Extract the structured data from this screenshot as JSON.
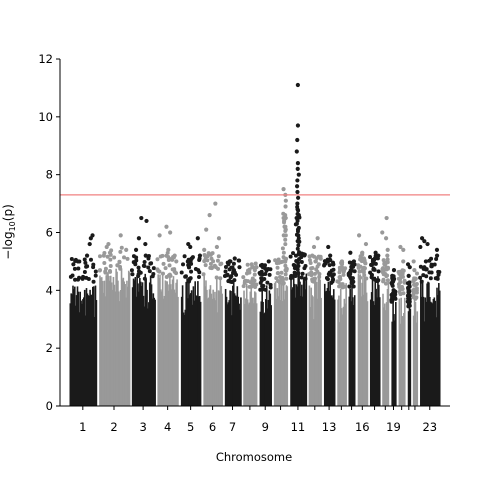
{
  "chart_data": {
    "type": "scatter",
    "title": "",
    "xlabel": "Chromosome",
    "ylabel": "−log₁₀(p)",
    "ylabel_parts": {
      "prefix": "−log",
      "sub": "10",
      "suffix": "(p)"
    },
    "ylim": [
      0,
      12
    ],
    "yticks": [
      0,
      2,
      4,
      6,
      8,
      10,
      12
    ],
    "grid": false,
    "legend": "none",
    "colors": {
      "odd": "#1a1a1a",
      "even": "#999999",
      "threshold": "#f08080",
      "axis": "#000000"
    },
    "threshold": 7.3,
    "x_tick_labels": [
      "1",
      "2",
      "3",
      "4",
      "5",
      "6",
      "7",
      "9",
      "11",
      "13",
      "16",
      "19",
      "23"
    ],
    "x_tick_chromosomes": [
      1,
      2,
      3,
      4,
      5,
      6,
      7,
      9,
      11,
      13,
      16,
      19,
      23
    ],
    "chromosomes": [
      {
        "chr": 1,
        "span": [
          0,
          29
        ],
        "base_top": 4.4,
        "top_points": [
          5.8,
          5.9,
          5.6,
          5.2,
          5.0,
          4.9
        ]
      },
      {
        "chr": 2,
        "span": [
          29,
          61
        ],
        "base_top": 4.8,
        "top_points": [
          5.9,
          5.6,
          5.5,
          5.3,
          5.4,
          5.2
        ]
      },
      {
        "chr": 3,
        "span": [
          61,
          86
        ],
        "base_top": 4.6,
        "top_points": [
          6.4,
          6.5,
          5.8,
          5.6,
          5.4,
          5.2
        ]
      },
      {
        "chr": 4,
        "span": [
          86,
          109
        ],
        "base_top": 4.6,
        "top_points": [
          6.2,
          6.0,
          5.9,
          5.4,
          5.2,
          5.0
        ]
      },
      {
        "chr": 5,
        "span": [
          109,
          131
        ],
        "base_top": 4.5,
        "top_points": [
          5.8,
          5.6,
          5.5,
          5.2,
          5.1
        ]
      },
      {
        "chr": 6,
        "span": [
          131,
          152
        ],
        "base_top": 4.6,
        "top_points": [
          7.0,
          6.6,
          6.1,
          5.8,
          5.5,
          5.4,
          5.2
        ]
      },
      {
        "chr": 7,
        "span": [
          152,
          170
        ],
        "base_top": 4.4,
        "top_points": [
          5.1,
          5.0,
          4.9,
          4.8
        ]
      },
      {
        "chr": 8,
        "span": [
          170,
          186
        ],
        "base_top": 4.3,
        "top_points": [
          4.9,
          4.8,
          4.7
        ]
      },
      {
        "chr": 9,
        "span": [
          186,
          200
        ],
        "base_top": 4.2,
        "top_points": [
          5.0,
          4.8,
          4.6
        ]
      },
      {
        "chr": 10,
        "span": [
          200,
          216
        ],
        "base_top": 4.4,
        "top_points": [
          7.5,
          7.3,
          7.1,
          6.9,
          6.6,
          6.4,
          6.2,
          6.5,
          6.1,
          5.9
        ]
      },
      {
        "chr": 11,
        "span": [
          216,
          234
        ],
        "base_top": 4.6,
        "top_points": [
          11.1,
          9.7,
          9.2,
          8.8,
          8.4,
          8.2,
          8.0,
          7.8,
          7.6,
          7.4,
          7.2,
          7.0,
          6.8,
          6.6,
          6.5,
          6.3,
          6.1,
          5.9,
          5.7
        ]
      },
      {
        "chr": 12,
        "span": [
          234,
          249
        ],
        "base_top": 4.5,
        "top_points": [
          5.8,
          5.5,
          5.2,
          5.0
        ]
      },
      {
        "chr": 13,
        "span": [
          249,
          262
        ],
        "base_top": 4.4,
        "top_points": [
          5.5,
          5.2,
          5.0,
          4.9
        ]
      },
      {
        "chr": 14,
        "span": [
          262,
          273
        ],
        "base_top": 4.3,
        "top_points": [
          5.0,
          4.9,
          4.8
        ]
      },
      {
        "chr": 15,
        "span": [
          273,
          282
        ],
        "base_top": 4.3,
        "top_points": [
          5.3,
          5.0,
          4.9
        ]
      },
      {
        "chr": 16,
        "span": [
          282,
          294
        ],
        "base_top": 4.6,
        "top_points": [
          5.9,
          5.6,
          5.3,
          5.1
        ]
      },
      {
        "chr": 17,
        "span": [
          294,
          306
        ],
        "base_top": 4.5,
        "top_points": [
          5.3,
          5.2,
          5.0,
          4.9
        ]
      },
      {
        "chr": 18,
        "span": [
          306,
          315
        ],
        "base_top": 4.4,
        "top_points": [
          6.5,
          6.0,
          5.8,
          5.4,
          5.2
        ]
      },
      {
        "chr": 19,
        "span": [
          315,
          322
        ],
        "base_top": 3.8,
        "top_points": [
          4.7,
          4.5,
          4.3
        ]
      },
      {
        "chr": 20,
        "span": [
          322,
          331
        ],
        "base_top": 4.0,
        "top_points": [
          5.5,
          5.4,
          5.0
        ]
      },
      {
        "chr": 21,
        "span": [
          331,
          336
        ],
        "base_top": 3.6,
        "top_points": [
          4.9,
          4.8,
          4.5
        ]
      },
      {
        "chr": 22,
        "span": [
          336,
          343
        ],
        "base_top": 3.9,
        "top_points": [
          5.0,
          4.7,
          4.4
        ]
      },
      {
        "chr": 23,
        "span": [
          343,
          365
        ],
        "base_top": 4.4,
        "top_points": [
          5.8,
          5.7,
          5.6,
          5.5,
          5.4,
          5.2,
          5.0,
          4.8
        ]
      }
    ]
  }
}
